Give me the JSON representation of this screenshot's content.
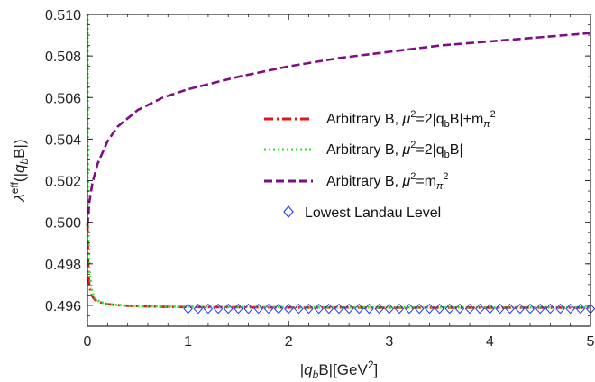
{
  "chart_data": {
    "type": "line",
    "title": "",
    "xlabel": "|q_bB|[GeV^2]",
    "ylabel": "λ^eff(|q_bB|)",
    "xlim": [
      0,
      5
    ],
    "ylim": [
      0.495,
      0.51
    ],
    "x_ticks": [
      0,
      1,
      2,
      3,
      4,
      5
    ],
    "x_tick_labels": [
      "0",
      "1",
      "2",
      "3",
      "4",
      "5"
    ],
    "y_ticks": [
      0.496,
      0.498,
      0.5,
      0.502,
      0.504,
      0.506,
      0.508,
      0.51
    ],
    "y_tick_labels": [
      "0.496",
      "0.498",
      "0.500",
      "0.502",
      "0.504",
      "0.506",
      "0.508",
      "0.510"
    ],
    "grid": false,
    "legend_position": "right",
    "series": [
      {
        "name": "Arbitrary B, μ²=2|q_bB|+m_π²",
        "style": "dashdot",
        "color": "#e8121a",
        "x": [
          0,
          0.01,
          0.02,
          0.04,
          0.06,
          0.08,
          0.1,
          0.15,
          0.2,
          0.3,
          0.4,
          0.5,
          0.75,
          1,
          1.5,
          2,
          3,
          4,
          5
        ],
        "y": [
          0.5,
          0.4975,
          0.4969,
          0.4965,
          0.49635,
          0.49625,
          0.4962,
          0.49611,
          0.49606,
          0.49601,
          0.49598,
          0.49596,
          0.49593,
          0.49592,
          0.49591,
          0.4959,
          0.49589,
          0.49589,
          0.49589
        ]
      },
      {
        "name": "Arbitrary B, μ²=2|q_bB|",
        "style": "dotted",
        "color": "#27e827",
        "x": [
          0.001,
          0.003,
          0.006,
          0.01,
          0.02,
          0.04,
          0.06,
          0.08,
          0.1,
          0.15,
          0.2,
          0.3,
          0.4,
          0.5,
          0.75,
          1,
          1.5,
          2,
          3,
          4,
          5
        ],
        "y": [
          0.5103,
          0.5042,
          0.501,
          0.4993,
          0.4977,
          0.4968,
          0.49645,
          0.49632,
          0.49624,
          0.49613,
          0.49607,
          0.49602,
          0.49599,
          0.49597,
          0.49594,
          0.49593,
          0.49592,
          0.49591,
          0.4959,
          0.4959,
          0.4959
        ]
      },
      {
        "name": "Arbitrary B, μ²=m_π²",
        "style": "dashed",
        "color": "#7e0f82",
        "x": [
          0,
          0.02,
          0.05,
          0.1,
          0.2,
          0.3,
          0.5,
          0.75,
          1,
          1.5,
          2,
          2.5,
          3,
          3.5,
          4,
          4.5,
          5
        ],
        "y": [
          0.4998,
          0.501,
          0.5019,
          0.5028,
          0.5039,
          0.5046,
          0.5054,
          0.506,
          0.5064,
          0.507,
          0.5075,
          0.5079,
          0.5082,
          0.5085,
          0.5087,
          0.5089,
          0.5091
        ]
      },
      {
        "name": "Lowest Landau Level",
        "style": "markers",
        "marker": "diamond-open",
        "color": "#2b3ff0",
        "x": [
          1,
          1.1,
          1.2,
          1.3,
          1.4,
          1.5,
          1.6,
          1.7,
          1.8,
          1.9,
          2,
          2.1,
          2.2,
          2.3,
          2.4,
          2.5,
          2.6,
          2.7,
          2.8,
          2.9,
          3,
          3.1,
          3.2,
          3.3,
          3.4,
          3.5,
          3.6,
          3.7,
          3.8,
          3.9,
          4,
          4.1,
          4.2,
          4.3,
          4.4,
          4.5,
          4.6,
          4.7,
          4.8,
          4.9,
          5
        ],
        "y": [
          0.49584,
          0.49584,
          0.49584,
          0.49584,
          0.49584,
          0.49584,
          0.49584,
          0.49584,
          0.49584,
          0.49584,
          0.49584,
          0.49584,
          0.49584,
          0.49584,
          0.49584,
          0.49584,
          0.49584,
          0.49584,
          0.49584,
          0.49584,
          0.49584,
          0.49584,
          0.49584,
          0.49584,
          0.49584,
          0.49584,
          0.49584,
          0.49584,
          0.49584,
          0.49584,
          0.49584,
          0.49584,
          0.49584,
          0.49584,
          0.49584,
          0.49584,
          0.49584,
          0.49584,
          0.49584,
          0.49584,
          0.49584
        ]
      }
    ]
  }
}
